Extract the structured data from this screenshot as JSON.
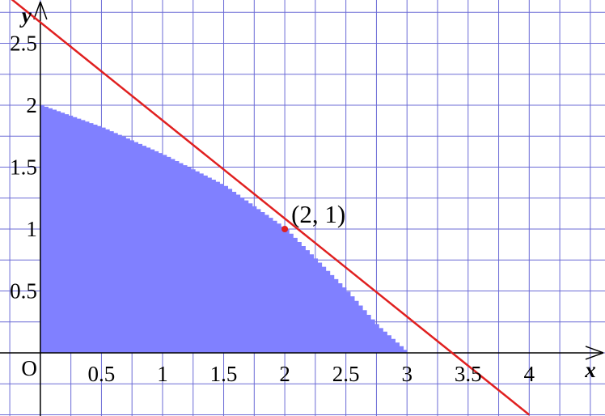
{
  "chart_data": {
    "type": "area",
    "title": "",
    "xlabel": "x",
    "ylabel": "y",
    "origin_label": "O",
    "xlim": [
      -0.33,
      4.62
    ],
    "ylim": [
      -0.51,
      2.85
    ],
    "x_ticks": [
      {
        "value": 0.5,
        "label": "0.5"
      },
      {
        "value": 1,
        "label": "1"
      },
      {
        "value": 1.5,
        "label": "1.5"
      },
      {
        "value": 2,
        "label": "2"
      },
      {
        "value": 2.5,
        "label": "2.5"
      },
      {
        "value": 3,
        "label": "3"
      },
      {
        "value": 3.5,
        "label": "3.5"
      },
      {
        "value": 4,
        "label": "4"
      }
    ],
    "y_ticks": [
      {
        "value": 0.5,
        "label": "0.5"
      },
      {
        "value": 1,
        "label": "1"
      },
      {
        "value": 1.5,
        "label": "1.5"
      },
      {
        "value": 2,
        "label": "2"
      },
      {
        "value": 2.5,
        "label": "2.5"
      }
    ],
    "grid": true,
    "region": {
      "color": "#8080ff",
      "boundary": [
        {
          "x": 0,
          "y": 2.0
        },
        {
          "x": 0.5,
          "y": 1.82
        },
        {
          "x": 1,
          "y": 1.6
        },
        {
          "x": 1.5,
          "y": 1.35
        },
        {
          "x": 2,
          "y": 1.0
        },
        {
          "x": 2.5,
          "y": 0.5
        },
        {
          "x": 2.75,
          "y": 0.22
        },
        {
          "x": 3,
          "y": 0.0
        }
      ]
    },
    "line": {
      "color": "#e02020",
      "points": [
        {
          "x": 0,
          "y": 2.67
        },
        {
          "x": 4,
          "y": -0.5
        }
      ]
    },
    "point": {
      "x": 2,
      "y": 1,
      "label": "(2, 1)",
      "color": "#e02020"
    }
  }
}
